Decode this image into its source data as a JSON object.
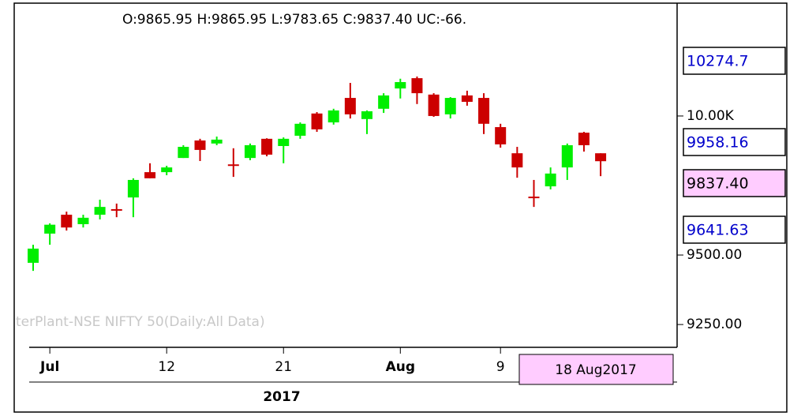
{
  "chart_data": {
    "type": "candlestick",
    "header": "O:9865.95 H:9865.95 L:9783.65 C:9837.40 UC:-66.",
    "watermark": "terPlant-NSE NIFTY 50(Daily:All Data)",
    "categories": [
      null,
      "Jul",
      null,
      null,
      null,
      null,
      null,
      null,
      "12",
      null,
      null,
      null,
      null,
      null,
      null,
      "21",
      null,
      null,
      null,
      null,
      null,
      null,
      "Aug",
      null,
      null,
      null,
      null,
      null,
      "9",
      null,
      null,
      null,
      null,
      null,
      null
    ],
    "open": [
      9472,
      9577,
      9645,
      9611,
      9645,
      9665,
      9707,
      9798,
      9798,
      9849,
      9912,
      9901,
      9826,
      9849,
      9918,
      9892,
      9929,
      10009,
      9977,
      10065,
      9989,
      10026,
      10099,
      10136,
      10077,
      10006,
      10074,
      10065,
      9960,
      9866,
      9710,
      9747,
      9815,
      9940,
      9865.95
    ],
    "high": [
      9537,
      9614,
      9656,
      9645,
      9699,
      9685,
      9776,
      9830,
      9821,
      9895,
      9918,
      9926,
      9884,
      9901,
      9920,
      9923,
      9977,
      10014,
      10026,
      10119,
      10020,
      10082,
      10134,
      10142,
      10082,
      10068,
      10091,
      10082,
      9972,
      9889,
      9770,
      9815,
      9901,
      9943,
      9865.95
    ],
    "low": [
      9443,
      9537,
      9588,
      9599,
      9628,
      9636,
      9636,
      9776,
      9787,
      9849,
      9838,
      9895,
      9781,
      9841,
      9855,
      9830,
      9918,
      9943,
      9969,
      9991,
      9935,
      10011,
      10063,
      10043,
      9997,
      9991,
      10037,
      9935,
      9886,
      9778,
      9673,
      9736,
      9770,
      9872,
      9783.65
    ],
    "close": [
      9523,
      9609,
      9599,
      9634,
      9673,
      9662,
      9770,
      9776,
      9815,
      9889,
      9878,
      9915,
      9821,
      9895,
      9861,
      9918,
      9972,
      9952,
      10020,
      10006,
      10017,
      10074,
      10122,
      10082,
      10000,
      10065,
      10051,
      9972,
      9898,
      9815,
      9707,
      9793,
      9895,
      9895,
      9837.4
    ],
    "up_color": "#00ee00",
    "down_color": "#cc0000",
    "ylim": [
      9168,
      10403
    ],
    "yticks": [
      {
        "value": 9250,
        "label": "9250.00"
      },
      {
        "value": 9500,
        "label": "9500.00"
      },
      {
        "value": 10000,
        "label": "10.00K"
      }
    ],
    "year_label": "2017",
    "cursor_date": "18 Aug2017",
    "price_labels": [
      "10274.7",
      "9958.16",
      "9837.40",
      "9641.63"
    ]
  }
}
